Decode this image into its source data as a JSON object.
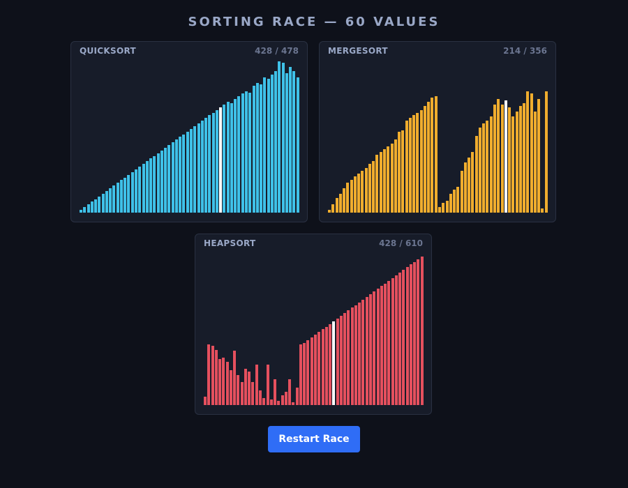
{
  "header": {
    "title": "SORTING RACE — 60 VALUES"
  },
  "panels": [
    {
      "name": "QUICKSORT",
      "counter": "428 / 478",
      "color": "#3fc1e8",
      "highlight_color": "#ffffff",
      "highlight_index": 38,
      "values": [
        2,
        4,
        6,
        8,
        10,
        12,
        14,
        16,
        18,
        20,
        22,
        24,
        26,
        28,
        30,
        32,
        34,
        36,
        38,
        40,
        42,
        44,
        46,
        48,
        50,
        52,
        54,
        56,
        58,
        60,
        62,
        64,
        66,
        68,
        70,
        72,
        74,
        76,
        78,
        80,
        82,
        81,
        84,
        86,
        88,
        90,
        89,
        94,
        96,
        95,
        100,
        99,
        102,
        105,
        112,
        111,
        103,
        108,
        105,
        100
      ]
    },
    {
      "name": "MERGESORT",
      "counter": "214 / 356",
      "color": "#f0ad2e",
      "highlight_color": "#ffffff",
      "highlight_index": 48,
      "values": [
        2,
        6,
        11,
        14,
        18,
        22,
        24,
        27,
        29,
        31,
        33,
        36,
        38,
        43,
        45,
        47,
        49,
        51,
        54,
        60,
        61,
        68,
        70,
        72,
        74,
        76,
        79,
        82,
        85,
        86,
        4,
        7,
        9,
        14,
        17,
        19,
        31,
        37,
        41,
        45,
        57,
        63,
        66,
        68,
        71,
        80,
        84,
        80,
        83,
        78,
        71,
        75,
        79,
        81,
        90,
        88,
        75,
        84,
        3,
        90
      ]
    },
    {
      "name": "HEAPSORT",
      "counter": "428 / 610",
      "color": "#e5505e",
      "highlight_color": "#ffffff",
      "highlight_index": 35,
      "values": [
        6,
        45,
        44,
        41,
        34,
        35,
        32,
        26,
        40,
        22,
        17,
        27,
        25,
        17,
        30,
        11,
        5,
        30,
        4,
        19,
        3,
        7,
        10,
        19,
        2,
        13,
        45,
        46,
        48,
        50,
        52,
        54,
        56,
        58,
        60,
        62,
        64,
        66,
        68,
        70,
        72,
        74,
        76,
        78,
        80,
        82,
        84,
        86,
        88,
        90,
        92,
        94,
        96,
        98,
        100,
        102,
        104,
        106,
        108,
        110
      ]
    }
  ],
  "restart_button": {
    "label": "Restart Race"
  }
}
